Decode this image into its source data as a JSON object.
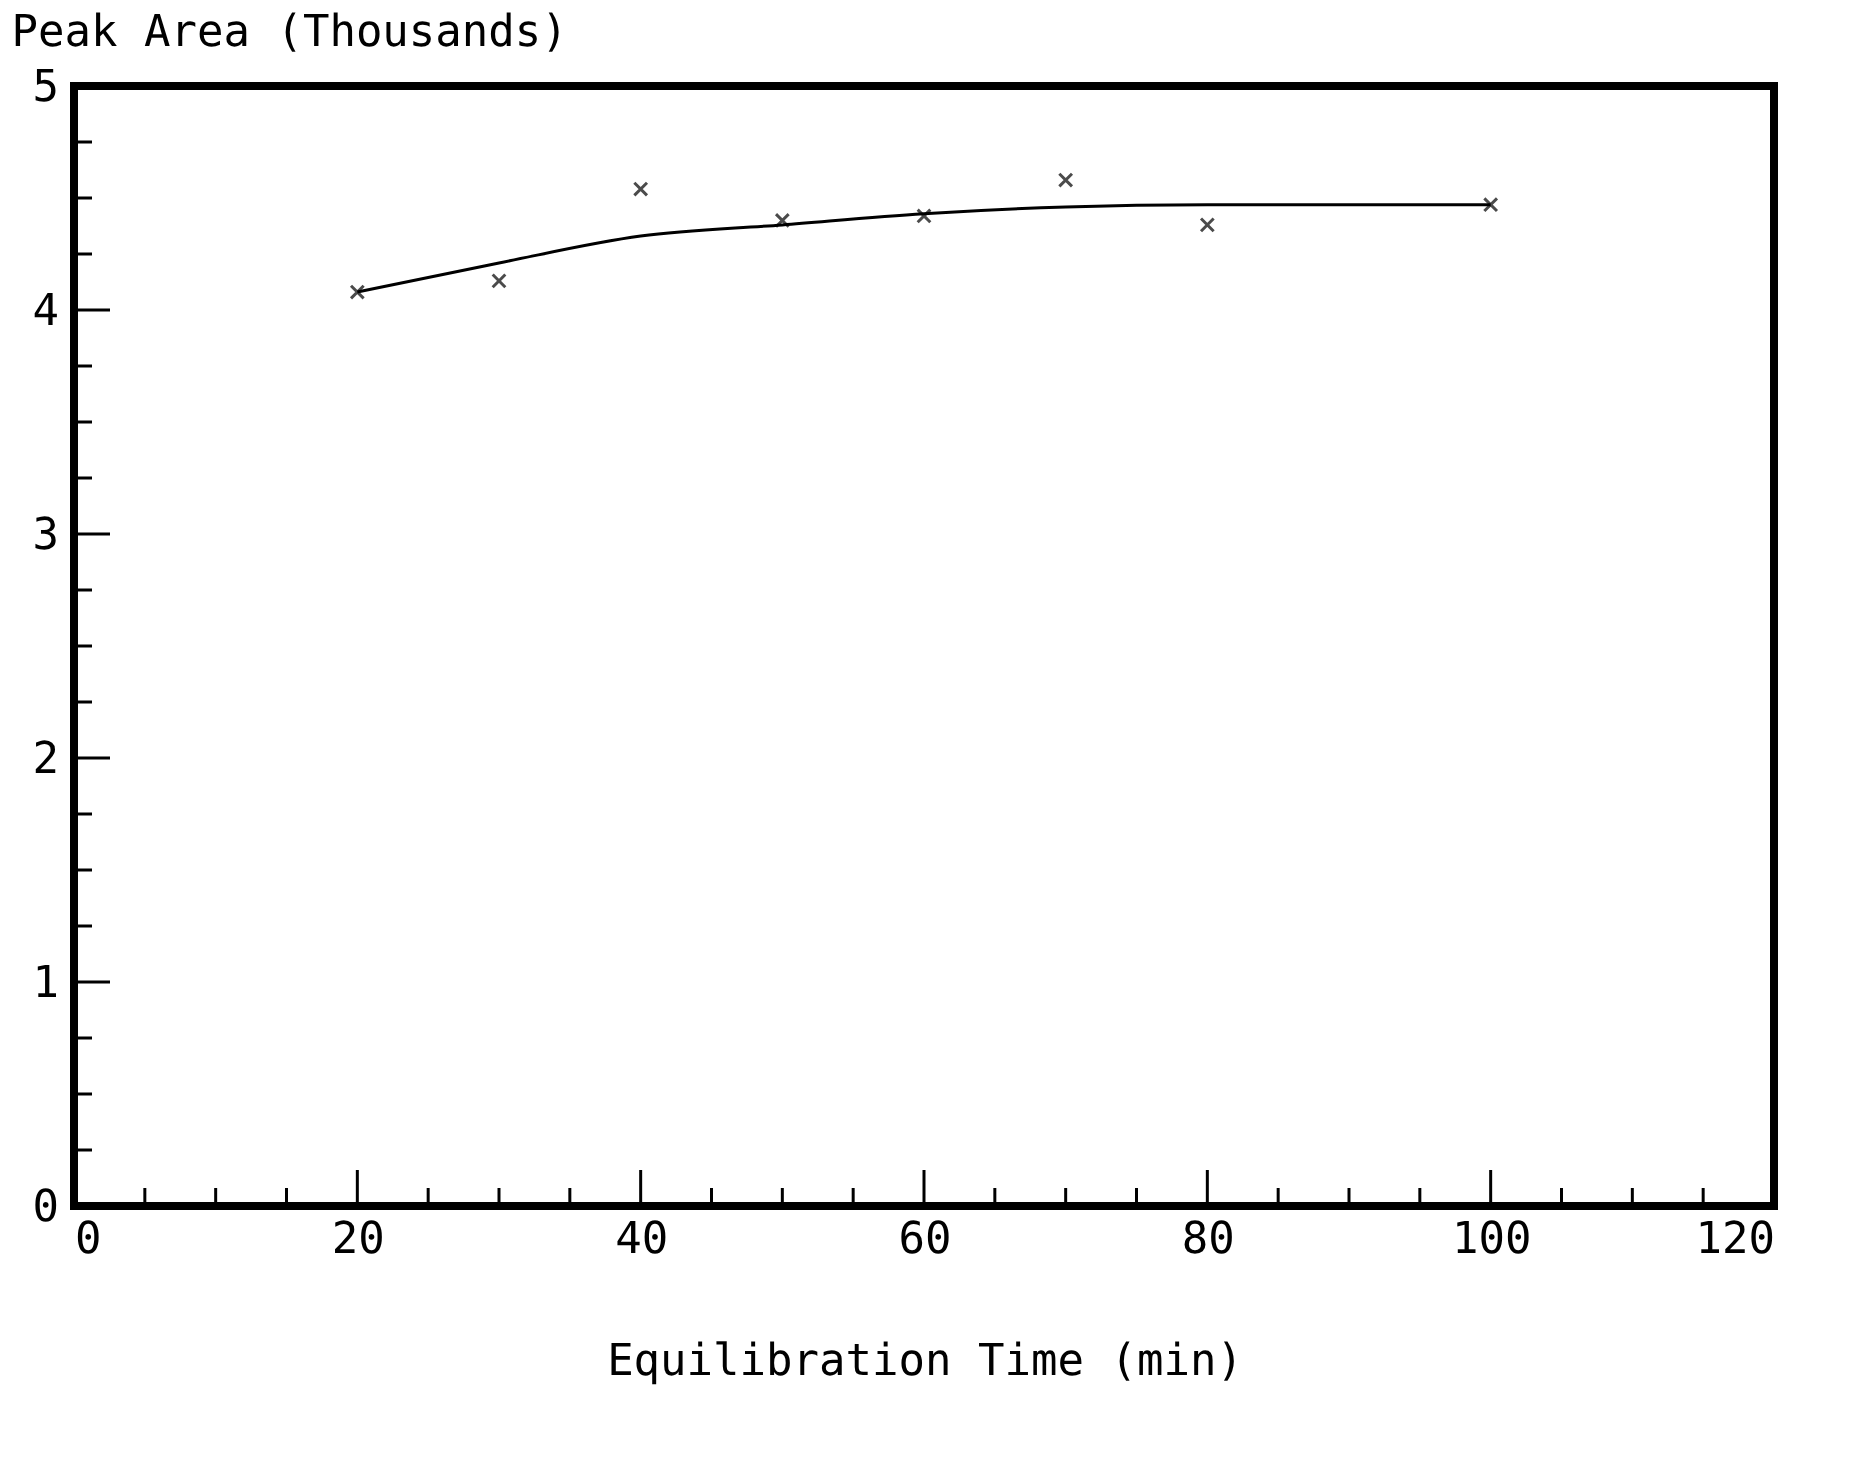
{
  "chart_data": {
    "type": "scatter",
    "xlabel": "Equilibration Time (min)",
    "ylabel": "Peak Area (Thousands)",
    "xlim": [
      0,
      120
    ],
    "ylim": [
      0,
      5
    ],
    "xticks": [
      0,
      {
        "value": 5,
        "label": null
      },
      {
        "value": 10,
        "label": null
      },
      {
        "value": 15,
        "label": null
      },
      20,
      {
        "value": 25,
        "label": null
      },
      {
        "value": 30,
        "label": null
      },
      {
        "value": 35,
        "label": null
      },
      40,
      {
        "value": 45,
        "label": null
      },
      {
        "value": 50,
        "label": null
      },
      {
        "value": 55,
        "label": null
      },
      60,
      {
        "value": 65,
        "label": null
      },
      {
        "value": 70,
        "label": null
      },
      {
        "value": 75,
        "label": null
      },
      80,
      {
        "value": 85,
        "label": null
      },
      {
        "value": 90,
        "label": null
      },
      {
        "value": 95,
        "label": null
      },
      100,
      {
        "value": 105,
        "label": null
      },
      {
        "value": 110,
        "label": null
      },
      {
        "value": 115,
        "label": null
      },
      120
    ],
    "yticks": [
      0,
      {
        "value": 0.25,
        "label": null
      },
      {
        "value": 0.5,
        "label": null
      },
      {
        "value": 0.75,
        "label": null
      },
      1,
      {
        "value": 1.25,
        "label": null
      },
      {
        "value": 1.5,
        "label": null
      },
      {
        "value": 1.75,
        "label": null
      },
      2,
      {
        "value": 2.25,
        "label": null
      },
      {
        "value": 2.5,
        "label": null
      },
      {
        "value": 2.75,
        "label": null
      },
      3,
      {
        "value": 3.25,
        "label": null
      },
      {
        "value": 3.5,
        "label": null
      },
      {
        "value": 3.75,
        "label": null
      },
      4,
      {
        "value": 4.25,
        "label": null
      },
      {
        "value": 4.5,
        "label": null
      },
      {
        "value": 4.75,
        "label": null
      },
      5
    ],
    "grid": false,
    "series": [
      {
        "marker": "cross",
        "color": "#000000",
        "x": [
          20,
          30,
          40,
          50,
          60,
          70,
          80,
          100
        ],
        "values": [
          4.08,
          4.13,
          4.54,
          4.4,
          4.42,
          4.58,
          4.38,
          4.47
        ]
      },
      {
        "type": "line",
        "marker": "none",
        "line_style": "solid",
        "color": "#000000",
        "x": [
          20,
          30,
          40,
          50,
          60,
          70,
          80,
          90,
          100
        ],
        "values": [
          4.08,
          4.21,
          4.33,
          4.38,
          4.43,
          4.46,
          4.47,
          4.47,
          4.47
        ]
      }
    ]
  }
}
